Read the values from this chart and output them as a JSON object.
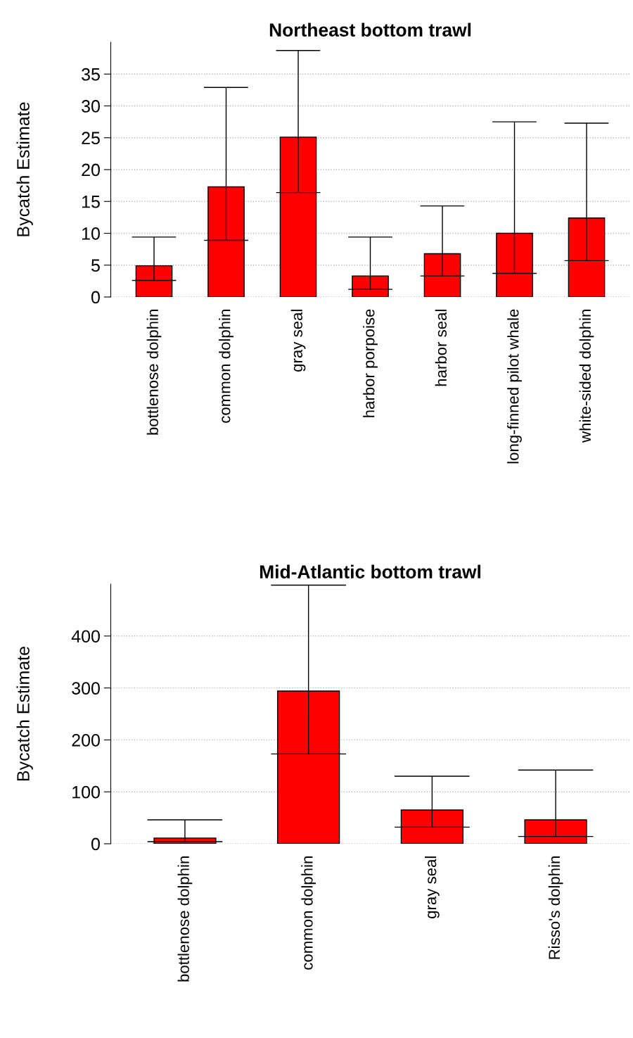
{
  "chart_data": [
    {
      "type": "bar",
      "title": "Northeast bottom trawl",
      "ylabel": "Bycatch Estimate",
      "categories": [
        "bottlenose dolphin",
        "common dolphin",
        "gray seal",
        "harbor porpoise",
        "harbor seal",
        "long-finned pilot whale",
        "white-sided dolphin"
      ],
      "values": [
        4.9,
        17.3,
        25.1,
        3.3,
        6.8,
        10.0,
        12.4
      ],
      "errors": [
        [
          2.6,
          9.4
        ],
        [
          8.9,
          32.9
        ],
        [
          16.4,
          38.7
        ],
        [
          1.2,
          9.4
        ],
        [
          3.3,
          14.3
        ],
        [
          3.7,
          27.5
        ],
        [
          5.7,
          27.3
        ]
      ],
      "color": "#ff0000",
      "ylim": [
        0,
        40
      ],
      "yticks": [
        0,
        5,
        10,
        15,
        20,
        25,
        30,
        35
      ],
      "grid": "y"
    },
    {
      "type": "bar",
      "title": "Mid-Atlantic bottom trawl",
      "ylabel": "Bycatch Estimate",
      "categories": [
        "bottlenose dolphin",
        "common dolphin",
        "gray seal",
        "Risso's dolphin"
      ],
      "values": [
        11,
        294,
        65,
        46
      ],
      "errors": [
        [
          4,
          46
        ],
        [
          173,
          498
        ],
        [
          32,
          130
        ],
        [
          14,
          142
        ]
      ],
      "color": "#ff0000",
      "ylim": [
        0,
        500
      ],
      "yticks": [
        0,
        100,
        200,
        300,
        400
      ],
      "grid": "y"
    }
  ]
}
